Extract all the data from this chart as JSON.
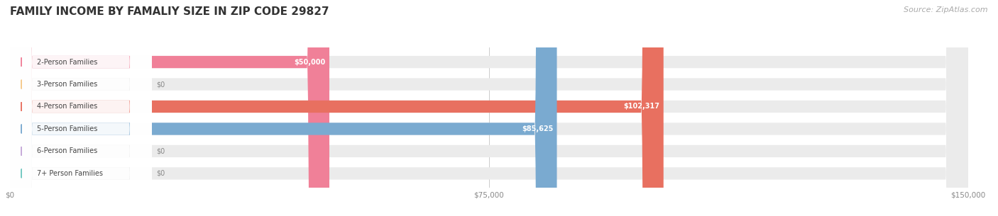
{
  "title": "FAMILY INCOME BY FAMALIY SIZE IN ZIP CODE 29827",
  "source": "Source: ZipAtlas.com",
  "categories": [
    "2-Person Families",
    "3-Person Families",
    "4-Person Families",
    "5-Person Families",
    "6-Person Families",
    "7+ Person Families"
  ],
  "values": [
    50000,
    0,
    102317,
    85625,
    0,
    0
  ],
  "bar_colors": [
    "#F08098",
    "#F5C98A",
    "#E87060",
    "#7AAAD0",
    "#C4A8D8",
    "#70C8C0"
  ],
  "value_labels": [
    "$50,000",
    "$0",
    "$102,317",
    "$85,625",
    "$0",
    "$0"
  ],
  "xlim": [
    0,
    150000
  ],
  "xtick_labels": [
    "$0",
    "$75,000",
    "$150,000"
  ],
  "xtick_values": [
    0,
    75000,
    150000
  ],
  "background_color": "#ffffff",
  "bar_bg_color": "#ebebeb",
  "title_fontsize": 11,
  "source_fontsize": 8,
  "bar_height": 0.55,
  "figsize": [
    14.06,
    3.05
  ],
  "dpi": 100
}
